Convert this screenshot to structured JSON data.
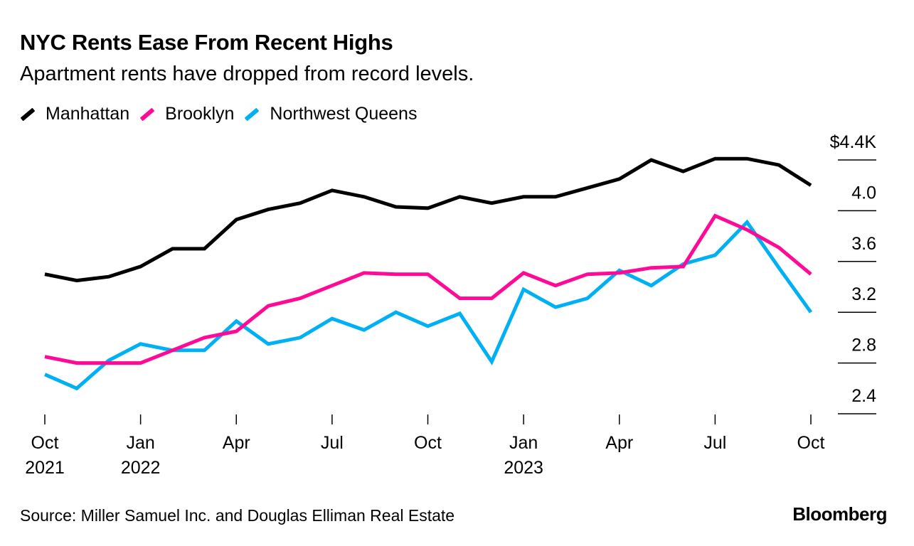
{
  "chart_data": {
    "type": "line",
    "title": "NYC Rents Ease From Recent Highs",
    "subtitle": "Apartment rents have dropped from record levels.",
    "source": "Source: Miller Samuel Inc. and Douglas Elliman Real Estate",
    "logo": "Bloomberg",
    "x": [
      "2021-10",
      "2021-11",
      "2021-12",
      "2022-01",
      "2022-02",
      "2022-03",
      "2022-04",
      "2022-05",
      "2022-06",
      "2022-07",
      "2022-08",
      "2022-09",
      "2022-10",
      "2022-11",
      "2022-12",
      "2023-01",
      "2023-02",
      "2023-03",
      "2023-04",
      "2023-05",
      "2023-06",
      "2023-07",
      "2023-08",
      "2023-09",
      "2023-10"
    ],
    "x_ticks": [
      {
        "month": "2021-10",
        "label": "Oct",
        "year": "2021"
      },
      {
        "month": "2022-01",
        "label": "Jan",
        "year": "2022"
      },
      {
        "month": "2022-04",
        "label": "Apr",
        "year": ""
      },
      {
        "month": "2022-07",
        "label": "Jul",
        "year": ""
      },
      {
        "month": "2022-10",
        "label": "Oct",
        "year": ""
      },
      {
        "month": "2023-01",
        "label": "Jan",
        "year": "2023"
      },
      {
        "month": "2023-04",
        "label": "Apr",
        "year": ""
      },
      {
        "month": "2023-07",
        "label": "Jul",
        "year": ""
      },
      {
        "month": "2023-10",
        "label": "Oct",
        "year": ""
      }
    ],
    "y_ticks": [
      {
        "value": 4.4,
        "label": "$4.4K"
      },
      {
        "value": 4.0,
        "label": "4.0"
      },
      {
        "value": 3.6,
        "label": "3.6"
      },
      {
        "value": 3.2,
        "label": "3.2"
      },
      {
        "value": 2.8,
        "label": "2.8"
      },
      {
        "value": 2.4,
        "label": "2.4"
      }
    ],
    "ylim": [
      2.4,
      4.4
    ],
    "yaxis_position": "right",
    "grid": false,
    "legend_position": "top-left",
    "series": [
      {
        "name": "Manhattan",
        "color": "#000000",
        "values": [
          3.5,
          3.45,
          3.48,
          3.56,
          3.7,
          3.7,
          3.93,
          4.01,
          4.06,
          4.16,
          4.11,
          4.03,
          4.02,
          4.11,
          4.06,
          4.11,
          4.11,
          4.18,
          4.25,
          4.4,
          4.31,
          4.41,
          4.41,
          4.36,
          4.2
        ]
      },
      {
        "name": "Brooklyn",
        "color": "#ff0a96",
        "values": [
          2.85,
          2.8,
          2.8,
          2.8,
          2.9,
          3.0,
          3.05,
          3.25,
          3.31,
          3.41,
          3.51,
          3.5,
          3.5,
          3.31,
          3.31,
          3.51,
          3.41,
          3.5,
          3.51,
          3.55,
          3.56,
          3.96,
          3.85,
          3.71,
          3.5
        ]
      },
      {
        "name": "Northwest Queens",
        "color": "#00b0f5",
        "values": [
          2.71,
          2.6,
          2.82,
          2.95,
          2.9,
          2.9,
          3.13,
          2.95,
          3.0,
          3.15,
          3.06,
          3.2,
          3.09,
          3.19,
          2.81,
          3.38,
          3.24,
          3.31,
          3.53,
          3.41,
          3.58,
          3.65,
          3.91,
          3.55,
          3.2
        ]
      }
    ]
  }
}
